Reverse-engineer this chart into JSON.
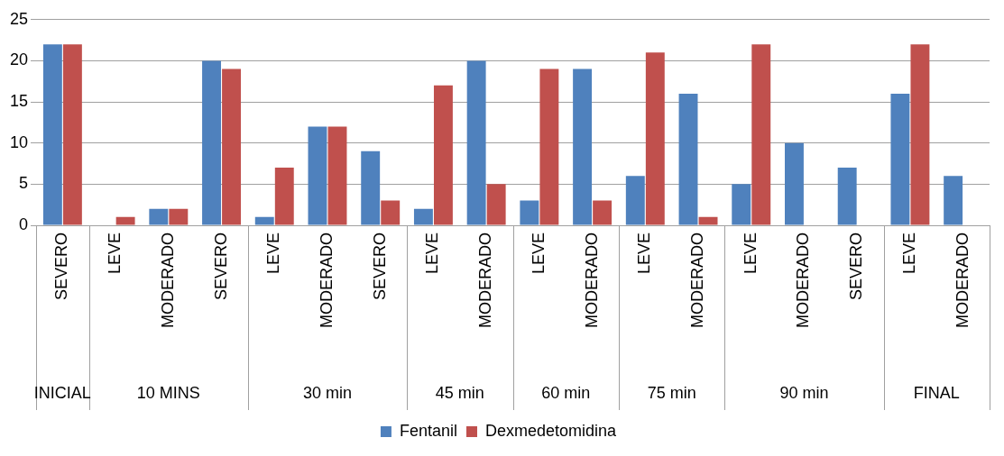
{
  "chart_data": {
    "type": "bar",
    "categories": [
      "SEVERO",
      "LEVE",
      "MODERADO",
      "SEVERO",
      "LEVE",
      "MODERADO",
      "SEVERO",
      "LEVE",
      "MODERADO",
      "LEVE",
      "MODERADO",
      "LEVE",
      "MODERADO",
      "LEVE",
      "MODERADO",
      "SEVERO",
      "LEVE",
      "MODERADO"
    ],
    "series": [
      {
        "name": "Fentanil",
        "color": "#4f81bd",
        "values": [
          22,
          0,
          2,
          20,
          1,
          12,
          9,
          2,
          20,
          3,
          19,
          6,
          16,
          5,
          10,
          7,
          16,
          6
        ]
      },
      {
        "name": "Dexmedetomidina",
        "color": "#c0504d",
        "values": [
          22,
          1,
          2,
          19,
          7,
          12,
          3,
          17,
          5,
          19,
          3,
          21,
          1,
          22,
          0,
          0,
          22,
          0
        ]
      }
    ],
    "annotations": [
      "INICIAL",
      "10 MINS",
      "30 min",
      "45 min",
      "60 min",
      "75 min",
      "90 min",
      "FINAL"
    ],
    "ylim": [
      0,
      25
    ],
    "yticks": [
      0,
      5,
      10,
      15,
      20,
      25
    ],
    "grid": "y",
    "legend": "bottom"
  }
}
